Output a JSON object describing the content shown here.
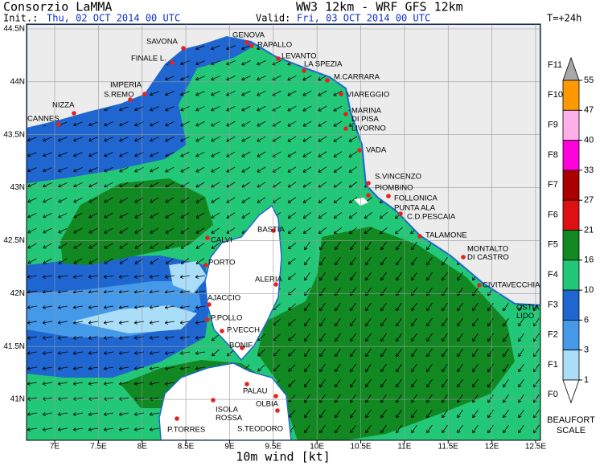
{
  "header": {
    "org": "Consorzio LaMMA",
    "model": "WW3 12km - WRF GFS 12km",
    "init_label": "Init.:",
    "init": "Thu, 02 OCT 2014  00 UTC",
    "valid_label": "Valid:",
    "valid": "Fri, 03 OCT 2014  00 UTC",
    "lead": "T=+24h"
  },
  "axes": {
    "lat_labels": [
      "44.5N",
      "44N",
      "43.5N",
      "43N",
      "42.5N",
      "42N",
      "41.5N",
      "41N"
    ],
    "lon_labels": [
      "7E",
      "7.5E",
      "8E",
      "8.5E",
      "9E",
      "9.5E",
      "10E",
      "10.5E",
      "11E",
      "11.5E",
      "12E",
      "12.5E"
    ],
    "xlabel": "10m wind [kt]"
  },
  "cities": [
    [
      "GENOVA"
    ],
    [
      "SAVONA"
    ],
    [
      "RAPALLO"
    ],
    [
      "FINALE L."
    ],
    [
      "LEVANTO"
    ],
    [
      "LA SPEZIA"
    ],
    [
      "M.CARRARA"
    ],
    [
      "IMPERIA"
    ],
    [
      "S.REMO"
    ],
    [
      "VIAREGGIO"
    ],
    [
      "NIZZA"
    ],
    [
      "MARINA",
      "DI PISA"
    ],
    [
      "CANNES"
    ],
    [
      "LIVORNO"
    ],
    [
      "VADA"
    ],
    [
      "S.VINCENZO"
    ],
    [
      "PIOMBINO"
    ],
    [
      "FOLLONICA"
    ],
    [
      "PUNTA ALA"
    ],
    [
      "C.D.PESCAIA"
    ],
    [
      "BASTIA"
    ],
    [
      "TALAMONE"
    ],
    [
      "CALVI"
    ],
    [
      "MONTALTO",
      "DI CASTRO"
    ],
    [
      "PORTO"
    ],
    [
      "ALERIA"
    ],
    [
      "CIVITAVECCHIA"
    ],
    [
      "AJACCIO"
    ],
    [
      "OSTIA",
      "LIDO"
    ],
    [
      "P.POLLO"
    ],
    [
      "P.VECCH"
    ],
    [
      "BONIF"
    ],
    [
      "PALAU"
    ],
    [
      "OLBIA"
    ],
    [
      "ISOLA",
      "ROSSA"
    ],
    [
      "P.TORRES"
    ],
    [
      "S.TEODORO"
    ]
  ],
  "legend": {
    "levels": [
      55,
      47,
      40,
      33,
      27,
      21,
      16,
      10,
      6,
      3,
      1
    ],
    "colors": [
      "#a8a8a8",
      "#ff9900",
      "#ffb0e8",
      "#ff00dd",
      "#aa0000",
      "#dd1111",
      "#118822",
      "#22c877",
      "#1f66d0",
      "#4499e8",
      "#aaddf8",
      "#ffffff"
    ],
    "beaufort": [
      "F11",
      "F10",
      "F9",
      "F8",
      "F7",
      "F6",
      "F5",
      "F4",
      "F3",
      "F2",
      "F1",
      "F0"
    ],
    "title": [
      "BEAUFORT",
      "SCALE"
    ]
  }
}
